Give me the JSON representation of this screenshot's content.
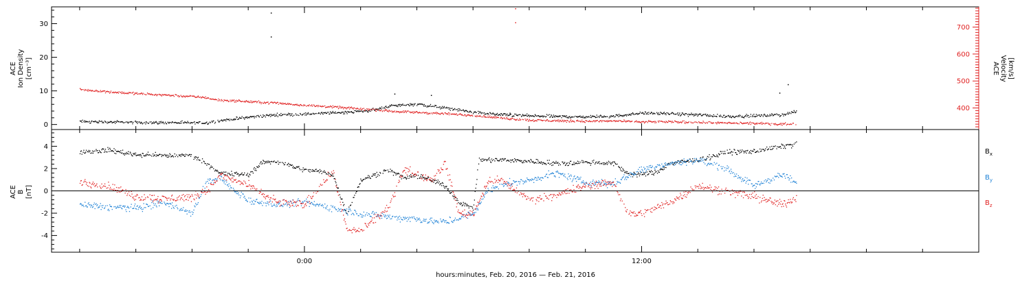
{
  "chart_data": [
    {
      "type": "scatter",
      "panel": "plasma",
      "ylabel_lines": [
        "ACE",
        "Ion Density",
        "[cm⁻³]"
      ],
      "y2label_lines": [
        "ACE",
        "Velocity",
        "[km/s]"
      ],
      "ylim": [
        -1.5,
        35
      ],
      "yticks": [
        0,
        10,
        20,
        30
      ],
      "y2lim": [
        320,
        775
      ],
      "y2ticks": [
        400,
        500,
        600,
        700
      ],
      "colors": {
        "density": "#000000",
        "velocity": "#e02020"
      },
      "series": [
        {
          "axis": "left",
          "color": "#000000",
          "knots": [
            [
              -8,
              1.0
            ],
            [
              -6,
              0.7
            ],
            [
              -3.5,
              0.6
            ],
            [
              -3,
              1.3
            ],
            [
              -2,
              2.3
            ],
            [
              -1,
              3.0
            ],
            [
              0,
              3.2
            ],
            [
              1,
              3.6
            ],
            [
              2,
              4.0
            ],
            [
              2.5,
              4.5
            ],
            [
              3,
              5.6
            ],
            [
              4,
              6.2
            ],
            [
              5,
              5.0
            ],
            [
              6,
              3.8
            ],
            [
              7,
              3.0
            ],
            [
              8,
              2.7
            ],
            [
              9,
              2.5
            ],
            [
              10,
              2.4
            ],
            [
              11,
              2.6
            ],
            [
              12,
              3.5
            ],
            [
              13,
              3.3
            ],
            [
              14,
              3.0
            ],
            [
              15,
              2.5
            ],
            [
              16,
              2.7
            ],
            [
              17,
              3.0
            ],
            [
              17.5,
              4.0
            ]
          ],
          "spread": 0.35,
          "extras": [
            [
              -1.2,
              33.3
            ],
            [
              -1.2,
              26.2
            ],
            [
              17.2,
              12.0
            ],
            [
              16.9,
              9.5
            ],
            [
              7.3,
              3.5
            ],
            [
              4.5,
              8.8
            ],
            [
              3.2,
              9.2
            ]
          ]
        },
        {
          "axis": "right",
          "color": "#e02020",
          "knots": [
            [
              -8,
              470
            ],
            [
              -7,
              462
            ],
            [
              -6,
              455
            ],
            [
              -5,
              450
            ],
            [
              -3.5,
              440
            ],
            [
              -3.2,
              432
            ],
            [
              -2,
              425
            ],
            [
              -1,
              420
            ],
            [
              0,
              412
            ],
            [
              1,
              405
            ],
            [
              2,
              398
            ],
            [
              3,
              390
            ],
            [
              4,
              385
            ],
            [
              5,
              380
            ],
            [
              6,
              374
            ],
            [
              7,
              364
            ],
            [
              8,
              356
            ],
            [
              9,
              354
            ],
            [
              10,
              352
            ],
            [
              11,
              353
            ],
            [
              12,
              350
            ],
            [
              13,
              350
            ],
            [
              14,
              348
            ],
            [
              15,
              346
            ],
            [
              16,
              344
            ],
            [
              17,
              342
            ],
            [
              17.5,
              342
            ]
          ],
          "spread": 3.5,
          "extras": [
            [
              7.5,
              770
            ],
            [
              7.5,
              718
            ]
          ]
        }
      ]
    },
    {
      "type": "scatter",
      "panel": "magnetic",
      "ylabel_lines": [
        "ACE",
        "B",
        "[nT]"
      ],
      "ylim": [
        -5.5,
        5.5
      ],
      "yticks": [
        -4,
        -2,
        0,
        2,
        4
      ],
      "hline": 0,
      "series": [
        {
          "name": "Bx",
          "color": "#000000",
          "knots": [
            [
              -8,
              3.5
            ],
            [
              -7,
              3.7
            ],
            [
              -6,
              3.3
            ],
            [
              -5,
              3.2
            ],
            [
              -4,
              3.2
            ],
            [
              -3.5,
              2.5
            ],
            [
              -3,
              1.6
            ],
            [
              -2,
              1.5
            ],
            [
              -1.5,
              2.6
            ],
            [
              -1,
              2.7
            ],
            [
              0,
              1.9
            ],
            [
              0.5,
              1.8
            ],
            [
              1,
              1.5
            ],
            [
              1.5,
              -2.0
            ],
            [
              2,
              1.0
            ],
            [
              2.5,
              1.5
            ],
            [
              3,
              1.9
            ],
            [
              3.5,
              1.2
            ],
            [
              4,
              1.4
            ],
            [
              4.5,
              1.0
            ],
            [
              5,
              0.5
            ],
            [
              5.5,
              -1.0
            ],
            [
              6,
              -1.5
            ],
            [
              6.2,
              2.8
            ],
            [
              7,
              2.8
            ],
            [
              8,
              2.7
            ],
            [
              9,
              2.5
            ],
            [
              10,
              2.6
            ],
            [
              11,
              2.5
            ],
            [
              11.5,
              1.6
            ],
            [
              12,
              1.5
            ],
            [
              12.5,
              1.7
            ],
            [
              13,
              2.5
            ],
            [
              14,
              2.8
            ],
            [
              15,
              3.5
            ],
            [
              16,
              3.6
            ],
            [
              17,
              4.0
            ],
            [
              17.5,
              4.3
            ]
          ],
          "spread": 0.18
        },
        {
          "name": "By",
          "color": "#1e82d6",
          "knots": [
            [
              -8,
              -1.2
            ],
            [
              -7,
              -1.4
            ],
            [
              -6,
              -1.5
            ],
            [
              -5,
              -1.0
            ],
            [
              -4,
              -2.0
            ],
            [
              -3.5,
              0.8
            ],
            [
              -3,
              1.2
            ],
            [
              -2.5,
              0.0
            ],
            [
              -2,
              -0.8
            ],
            [
              -1,
              -1.2
            ],
            [
              0,
              -1.0
            ],
            [
              1,
              -1.5
            ],
            [
              2,
              -2.0
            ],
            [
              3,
              -2.3
            ],
            [
              4,
              -2.5
            ],
            [
              5,
              -2.8
            ],
            [
              6,
              -2.0
            ],
            [
              6.5,
              0.0
            ],
            [
              7,
              0.6
            ],
            [
              8,
              1.0
            ],
            [
              9,
              1.6
            ],
            [
              10,
              0.8
            ],
            [
              11,
              0.7
            ],
            [
              12,
              2.0
            ],
            [
              13,
              2.5
            ],
            [
              14,
              2.8
            ],
            [
              15,
              2.0
            ],
            [
              16,
              0.5
            ],
            [
              17,
              1.5
            ],
            [
              17.5,
              0.7
            ]
          ],
          "spread": 0.25
        },
        {
          "name": "Bz",
          "color": "#e02020",
          "knots": [
            [
              -8,
              0.8
            ],
            [
              -7,
              0.5
            ],
            [
              -6,
              -0.5
            ],
            [
              -5,
              -0.7
            ],
            [
              -4,
              -0.5
            ],
            [
              -3.5,
              0.0
            ],
            [
              -3,
              1.4
            ],
            [
              -2,
              0.5
            ],
            [
              -1,
              -1.0
            ],
            [
              0,
              -1.2
            ],
            [
              0.5,
              0.3
            ],
            [
              1,
              1.8
            ],
            [
              1.5,
              -3.5
            ],
            [
              2,
              -3.5
            ],
            [
              2.5,
              -2.5
            ],
            [
              3,
              -1.5
            ],
            [
              3.5,
              2.0
            ],
            [
              4,
              1.5
            ],
            [
              4.5,
              1.0
            ],
            [
              5,
              2.5
            ],
            [
              5.5,
              -2.0
            ],
            [
              6,
              -2.0
            ],
            [
              6.5,
              0.8
            ],
            [
              7,
              1.0
            ],
            [
              8,
              -0.8
            ],
            [
              9,
              -0.3
            ],
            [
              10,
              0.5
            ],
            [
              11,
              0.8
            ],
            [
              11.5,
              -2.0
            ],
            [
              12,
              -2.0
            ],
            [
              13,
              -1.0
            ],
            [
              14,
              0.5
            ],
            [
              15,
              0.0
            ],
            [
              16,
              -0.5
            ],
            [
              17,
              -1.2
            ],
            [
              17.5,
              -0.5
            ]
          ],
          "spread": 0.3
        }
      ]
    }
  ],
  "x_axis": {
    "xlabel": "hours:minutes, Feb. 20, 2016 — Feb. 21, 2016",
    "xlim": [
      -9,
      24
    ],
    "major_ticks": [
      0,
      12
    ],
    "major_labels": [
      "0:00",
      "12:00"
    ],
    "minor_step": 2
  },
  "legend": [
    {
      "letter": "B",
      "sub": "x",
      "color": "#000000"
    },
    {
      "letter": "B",
      "sub": "y",
      "color": "#1e82d6"
    },
    {
      "letter": "B",
      "sub": "z",
      "color": "#e02020"
    }
  ]
}
